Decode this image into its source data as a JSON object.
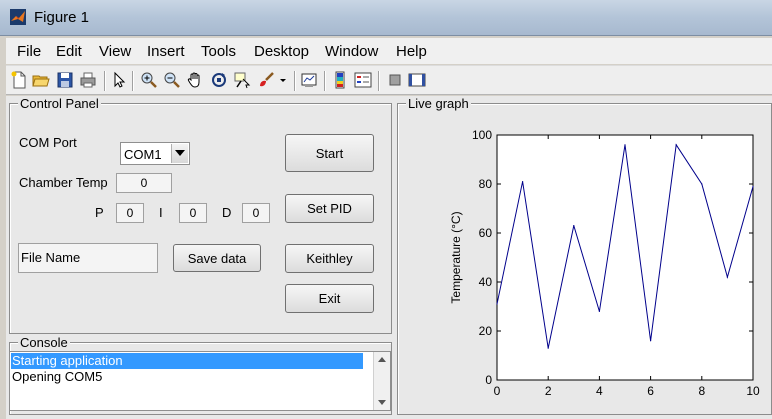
{
  "window": {
    "title": "Figure 1"
  },
  "menu": [
    "File",
    "Edit",
    "View",
    "Insert",
    "Tools",
    "Desktop",
    "Window",
    "Help"
  ],
  "toolbar": {
    "icons": [
      "new-file-icon",
      "open-folder-icon",
      "save-icon",
      "print-icon",
      "pointer-arrow-icon",
      "zoom-in-icon",
      "zoom-out-icon",
      "pan-hand-icon",
      "rotate-3d-icon",
      "data-cursor-icon",
      "brush-icon",
      "brush-dropdown-icon",
      "link-plot-icon",
      "colorbar-icon",
      "legend-icon",
      "hide-plot-tools-icon",
      "show-plot-tools-icon"
    ]
  },
  "control_panel": {
    "title": "Control Panel",
    "com_port_label": "COM Port",
    "com_port_value": "COM1",
    "chamber_temp_label": "Chamber Temp",
    "chamber_temp_value": "0",
    "p_label": "P",
    "p_value": "0",
    "i_label": "I",
    "i_value": "0",
    "d_label": "D",
    "d_value": "0",
    "file_name_value": "File Name",
    "save_data_label": "Save data",
    "start_label": "Start",
    "set_pid_label": "Set PID",
    "keithley_label": "Keithley",
    "exit_label": "Exit"
  },
  "console": {
    "title": "Console",
    "lines": [
      "Starting application",
      "Opening COM5"
    ],
    "selected_index": 0,
    "selection_color": "#3399ff"
  },
  "graph": {
    "title": "Live graph"
  },
  "chart_data": {
    "type": "line",
    "title": "",
    "xlabel": "",
    "ylabel": "Temperature (°C)",
    "x": [
      0,
      1,
      2,
      3,
      4,
      5,
      6,
      7,
      8,
      9,
      10
    ],
    "series": [
      {
        "color": "#00008b",
        "values": [
          31,
          81,
          13,
          63,
          28,
          96,
          16,
          96,
          80,
          42,
          79
        ]
      }
    ],
    "xlim": [
      0,
      10
    ],
    "ylim": [
      0,
      100
    ],
    "xticks": [
      "0",
      "2",
      "4",
      "6",
      "8",
      "10"
    ],
    "yticks": [
      "0",
      "20",
      "40",
      "60",
      "80",
      "100"
    ],
    "grid": false,
    "legend": "none"
  }
}
